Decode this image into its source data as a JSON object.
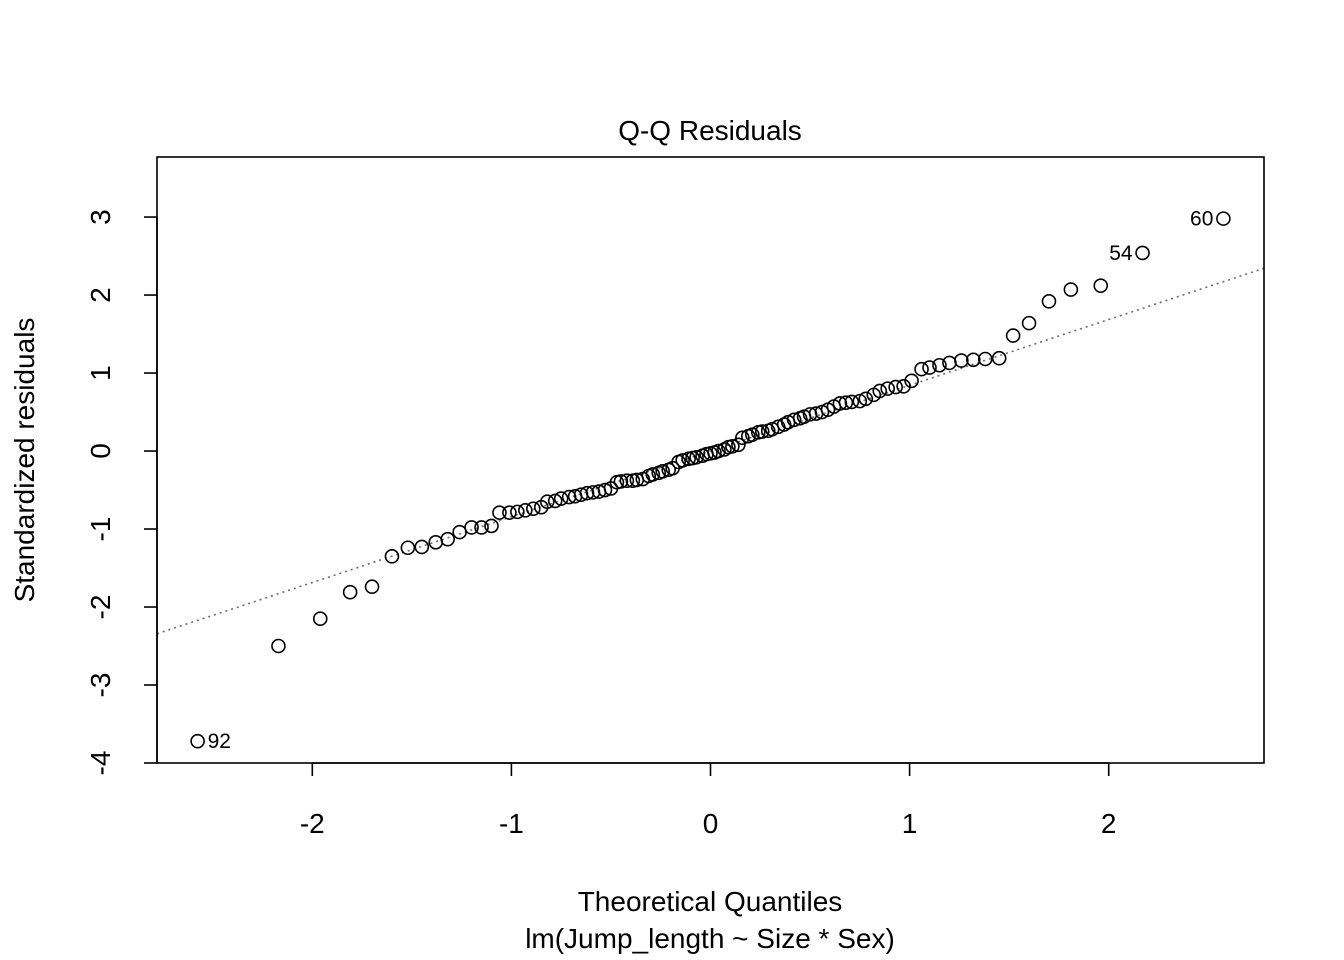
{
  "chart_data": {
    "type": "scatter",
    "title": "Q-Q Residuals",
    "xlabel": "Theoretical Quantiles",
    "subtitle": "lm(Jump_length ~ Size * Sex)",
    "ylabel": "Standardized residuals",
    "xlim": [
      -2.78,
      2.78
    ],
    "ylim": [
      -4.0,
      3.77
    ],
    "x_ticks": [
      -2,
      -1,
      0,
      1,
      2
    ],
    "y_ticks": [
      -4,
      -3,
      -2,
      -1,
      0,
      1,
      2,
      3
    ],
    "x_tick_labels": [
      "-2",
      "-1",
      "0",
      "1",
      "2"
    ],
    "y_tick_labels": [
      "-4",
      "-3",
      "-2",
      "-1",
      "0",
      "1",
      "2",
      "3"
    ],
    "grid": false,
    "reference_line": {
      "slope": 0.843,
      "intercept": 0.0,
      "style": "dotted",
      "color": "#6b6b6b"
    },
    "point_style": {
      "shape": "open-circle",
      "stroke": "#000000"
    },
    "points": [
      [
        -2.576,
        -3.72
      ],
      [
        -2.17,
        -2.5
      ],
      [
        -1.96,
        -2.15
      ],
      [
        -1.81,
        -1.81
      ],
      [
        -1.7,
        -1.74
      ],
      [
        -1.6,
        -1.35
      ],
      [
        -1.52,
        -1.24
      ],
      [
        -1.45,
        -1.23
      ],
      [
        -1.38,
        -1.17
      ],
      [
        -1.32,
        -1.13
      ],
      [
        -1.26,
        -1.04
      ],
      [
        -1.2,
        -0.98
      ],
      [
        -1.15,
        -0.98
      ],
      [
        -1.1,
        -0.96
      ],
      [
        -1.06,
        -0.79
      ],
      [
        -1.01,
        -0.79
      ],
      [
        -0.97,
        -0.78
      ],
      [
        -0.93,
        -0.76
      ],
      [
        -0.89,
        -0.74
      ],
      [
        -0.85,
        -0.72
      ],
      [
        -0.82,
        -0.65
      ],
      [
        -0.78,
        -0.64
      ],
      [
        -0.75,
        -0.61
      ],
      [
        -0.71,
        -0.59
      ],
      [
        -0.68,
        -0.58
      ],
      [
        -0.65,
        -0.56
      ],
      [
        -0.62,
        -0.54
      ],
      [
        -0.59,
        -0.53
      ],
      [
        -0.56,
        -0.52
      ],
      [
        -0.53,
        -0.5
      ],
      [
        -0.5,
        -0.48
      ],
      [
        -0.47,
        -0.4
      ],
      [
        -0.45,
        -0.39
      ],
      [
        -0.42,
        -0.38
      ],
      [
        -0.39,
        -0.38
      ],
      [
        -0.37,
        -0.37
      ],
      [
        -0.34,
        -0.36
      ],
      [
        -0.31,
        -0.32
      ],
      [
        -0.29,
        -0.3
      ],
      [
        -0.26,
        -0.28
      ],
      [
        -0.24,
        -0.26
      ],
      [
        -0.21,
        -0.24
      ],
      [
        -0.19,
        -0.22
      ],
      [
        -0.16,
        -0.14
      ],
      [
        -0.14,
        -0.12
      ],
      [
        -0.11,
        -0.1
      ],
      [
        -0.09,
        -0.09
      ],
      [
        -0.07,
        -0.08
      ],
      [
        -0.04,
        -0.06
      ],
      [
        -0.02,
        -0.04
      ],
      [
        0.0,
        -0.03
      ],
      [
        0.02,
        -0.02
      ],
      [
        0.04,
        0.0
      ],
      [
        0.07,
        0.02
      ],
      [
        0.09,
        0.05
      ],
      [
        0.11,
        0.06
      ],
      [
        0.14,
        0.08
      ],
      [
        0.16,
        0.17
      ],
      [
        0.19,
        0.19
      ],
      [
        0.21,
        0.21
      ],
      [
        0.24,
        0.24
      ],
      [
        0.26,
        0.25
      ],
      [
        0.29,
        0.26
      ],
      [
        0.31,
        0.28
      ],
      [
        0.34,
        0.31
      ],
      [
        0.37,
        0.34
      ],
      [
        0.39,
        0.37
      ],
      [
        0.42,
        0.4
      ],
      [
        0.45,
        0.42
      ],
      [
        0.47,
        0.44
      ],
      [
        0.5,
        0.47
      ],
      [
        0.53,
        0.48
      ],
      [
        0.56,
        0.5
      ],
      [
        0.59,
        0.53
      ],
      [
        0.62,
        0.57
      ],
      [
        0.65,
        0.61
      ],
      [
        0.68,
        0.62
      ],
      [
        0.71,
        0.63
      ],
      [
        0.75,
        0.64
      ],
      [
        0.78,
        0.67
      ],
      [
        0.82,
        0.72
      ],
      [
        0.85,
        0.77
      ],
      [
        0.89,
        0.8
      ],
      [
        0.93,
        0.82
      ],
      [
        0.97,
        0.83
      ],
      [
        1.01,
        0.9
      ],
      [
        1.06,
        1.05
      ],
      [
        1.1,
        1.07
      ],
      [
        1.15,
        1.1
      ],
      [
        1.2,
        1.13
      ],
      [
        1.26,
        1.16
      ],
      [
        1.32,
        1.17
      ],
      [
        1.38,
        1.18
      ],
      [
        1.45,
        1.19
      ],
      [
        1.52,
        1.48
      ],
      [
        1.6,
        1.64
      ],
      [
        1.7,
        1.92
      ],
      [
        1.81,
        2.07
      ],
      [
        1.96,
        2.12
      ],
      [
        2.17,
        2.54
      ],
      [
        2.576,
        2.98
      ]
    ],
    "annotations": [
      {
        "label": "92",
        "x": -2.576,
        "y": -3.72,
        "side": "right"
      },
      {
        "label": "54",
        "x": 2.17,
        "y": 2.54,
        "side": "left"
      },
      {
        "label": "60",
        "x": 2.576,
        "y": 2.98,
        "side": "left"
      }
    ]
  }
}
